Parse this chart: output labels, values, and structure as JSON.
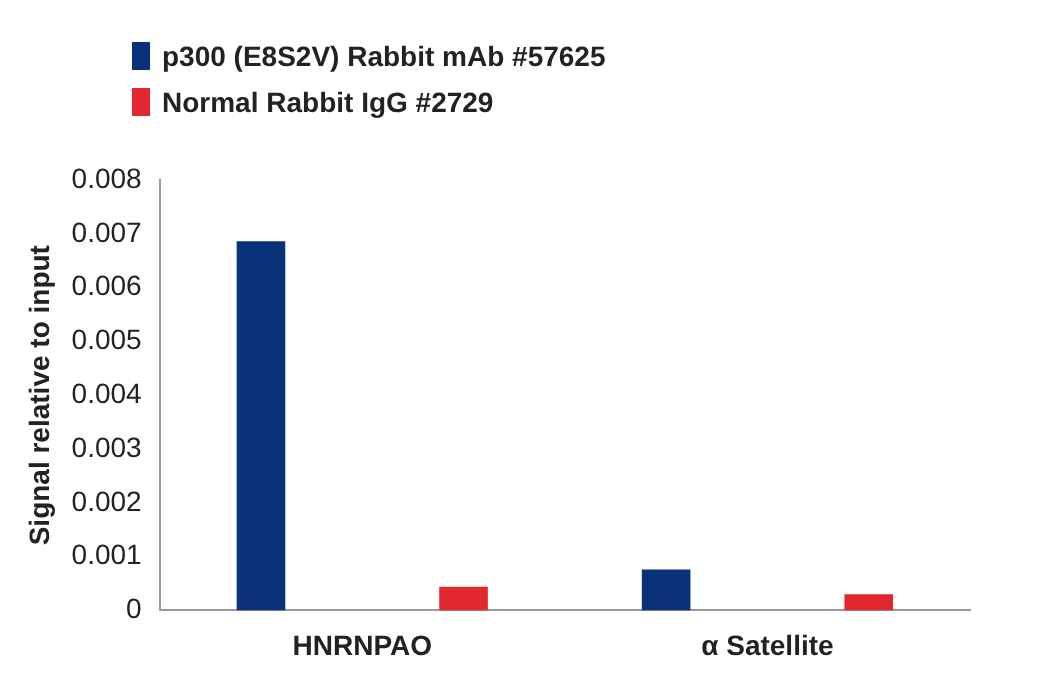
{
  "chart_data": {
    "type": "bar",
    "ylabel": "Signal relative to input",
    "categories": [
      "HNRNPAO",
      "α Satellite"
    ],
    "series": [
      {
        "name": "p300 (E8S2V) Rabbit mAb #57625",
        "color": "#0a3278",
        "values": [
          0.00686,
          0.00076
        ]
      },
      {
        "name": "Normal Rabbit IgG #2729",
        "color": "#e0282e",
        "values": [
          0.00044,
          0.0003
        ]
      }
    ],
    "ylim": [
      0,
      0.008
    ],
    "yticks": [
      0,
      0.001,
      0.002,
      0.003,
      0.004,
      0.005,
      0.006,
      0.007,
      0.008
    ],
    "grid": false,
    "legend": "top left"
  }
}
